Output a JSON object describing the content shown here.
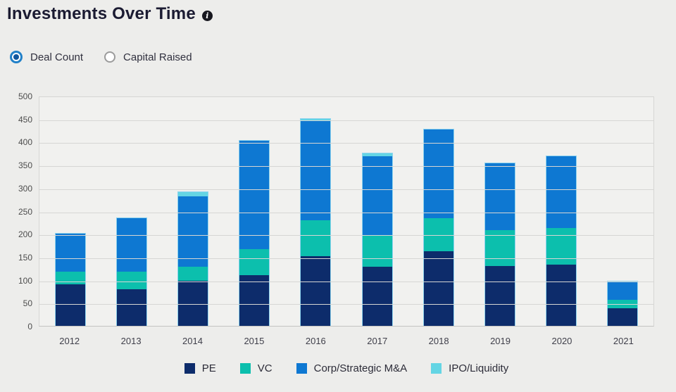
{
  "header": {
    "title": "Investments Over Time"
  },
  "controls": {
    "options": [
      {
        "label": "Deal Count",
        "selected": true
      },
      {
        "label": "Capital Raised",
        "selected": false
      }
    ]
  },
  "chart_data": {
    "type": "bar",
    "stacked": true,
    "title": "Investments Over Time",
    "xlabel": "",
    "ylabel": "",
    "categories": [
      "2012",
      "2013",
      "2014",
      "2015",
      "2016",
      "2017",
      "2018",
      "2019",
      "2020",
      "2021"
    ],
    "series": [
      {
        "name": "PE",
        "color": "#0d2c6b",
        "values": [
          90,
          80,
          98,
          110,
          151,
          128,
          162,
          130,
          133,
          38
        ]
      },
      {
        "name": "VC",
        "color": "#0cbfad",
        "values": [
          27,
          38,
          31,
          56,
          78,
          67,
          72,
          78,
          80,
          18
        ]
      },
      {
        "name": "Corp/Strategic M&A",
        "color": "#0e78d2",
        "values": [
          83,
          116,
          152,
          236,
          217,
          173,
          193,
          146,
          155,
          40
        ]
      },
      {
        "name": "IPO/Liquidity",
        "color": "#64d5e4",
        "values": [
          0,
          0,
          9,
          0,
          3,
          6,
          0,
          0,
          0,
          0
        ]
      }
    ],
    "totals": [
      200,
      234,
      290,
      402,
      449,
      374,
      427,
      354,
      368,
      96
    ],
    "ylim": [
      0,
      500
    ],
    "yticks": [
      0,
      50,
      100,
      150,
      200,
      250,
      300,
      350,
      400,
      450,
      500
    ],
    "grid": true,
    "legend_position": "bottom"
  },
  "colors": {
    "page_background": "#ededeb",
    "plot_background": "#f1f1ef",
    "gridline": "#d6d6d4",
    "bar_border": "#8ed3ee",
    "title_text": "#1b1b32",
    "radio_selected_ring": "#2180c8",
    "radio_selected_dot": "#11579e"
  }
}
